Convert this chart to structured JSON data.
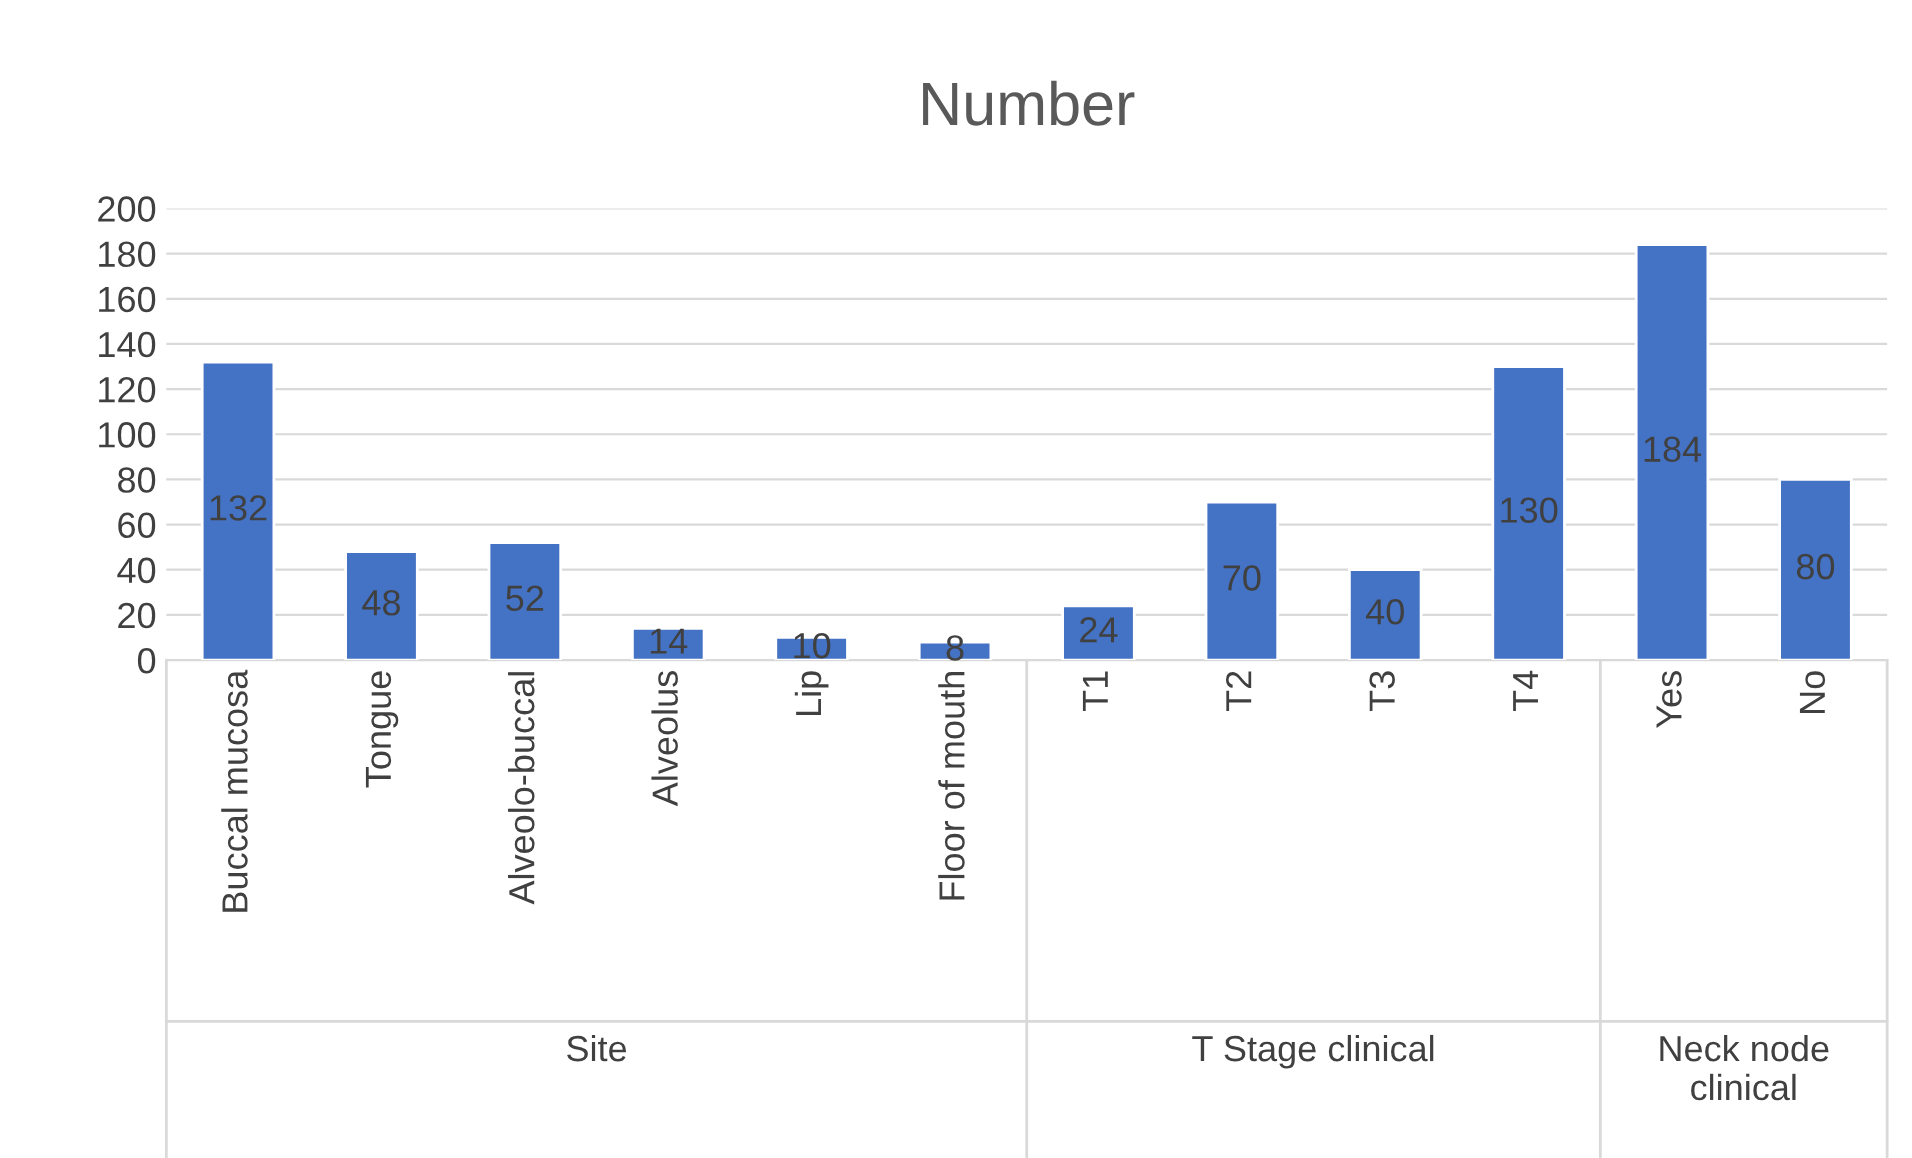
{
  "chart_data": {
    "type": "bar",
    "title": "Number",
    "categories": [
      "Buccal mucosa",
      "Tongue",
      "Alveolo-buccal",
      "Alveolus",
      "Lip",
      "Floor of mouth",
      "T1",
      "T2",
      "T3",
      "T4",
      "Yes",
      "No"
    ],
    "values": [
      132,
      48,
      52,
      14,
      10,
      8,
      24,
      70,
      40,
      130,
      184,
      80
    ],
    "color": "#4472c4",
    "ylim": [
      0,
      200
    ],
    "yticks": [
      0,
      20,
      40,
      60,
      80,
      100,
      120,
      140,
      160,
      180,
      200
    ],
    "grid": "y",
    "data_labels": true,
    "annotations": [
      "Site",
      "T Stage clinical",
      "Neck node\nclinical"
    ]
  }
}
